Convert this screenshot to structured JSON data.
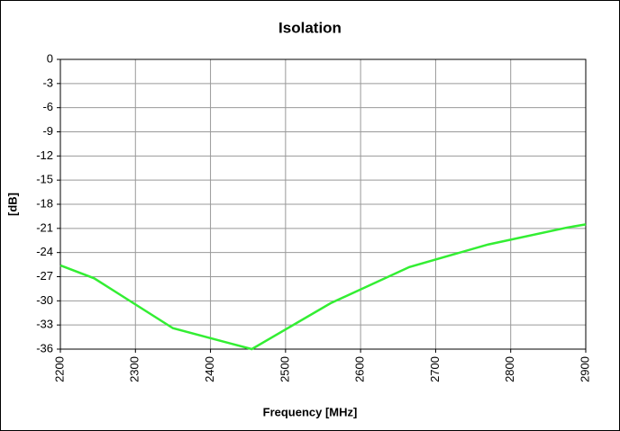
{
  "chart_data": {
    "type": "line",
    "title": "Isolation",
    "x_label": "Frequency [MHz]",
    "y_label": "[dB]",
    "x": [
      2200,
      2245,
      2350,
      2455,
      2560,
      2665,
      2770,
      2875,
      2900
    ],
    "series": [
      {
        "name": "Isolation",
        "color": "#33ee33",
        "values": [
          -25.6,
          -27.2,
          -33.4,
          -36,
          -30.3,
          -25.8,
          -23.0,
          -20.9,
          -20.5
        ]
      }
    ],
    "xlim": [
      2200,
      2900
    ],
    "xticks": [
      2200,
      2300,
      2400,
      2500,
      2600,
      2700,
      2800,
      2900
    ],
    "ylim": [
      -36,
      0
    ],
    "yticks": [
      0,
      -3,
      -6,
      -9,
      -12,
      -15,
      -18,
      -21,
      -24,
      -27,
      -30,
      -33,
      -36
    ],
    "grid": true
  }
}
